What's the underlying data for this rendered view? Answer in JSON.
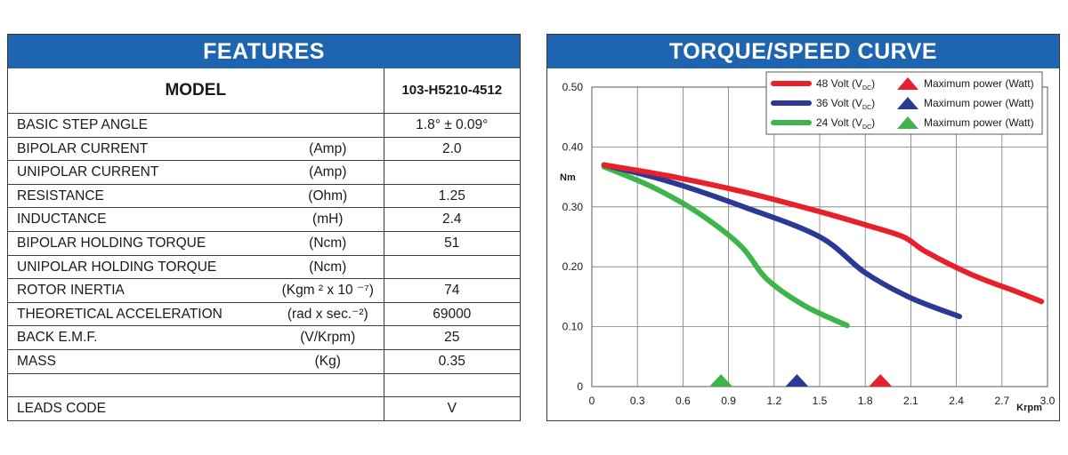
{
  "features": {
    "title": "FEATURES",
    "model_label": "MODEL",
    "model_value": "103-H5210-4512",
    "rows": [
      {
        "name": "BASIC STEP ANGLE",
        "unit": "",
        "value": "1.8° ± 0.09°"
      },
      {
        "name": "BIPOLAR CURRENT",
        "unit": "(Amp)",
        "value": "2.0"
      },
      {
        "name": "UNIPOLAR CURRENT",
        "unit": "(Amp)",
        "value": ""
      },
      {
        "name": "RESISTANCE",
        "unit": "(Ohm)",
        "value": "1.25"
      },
      {
        "name": "INDUCTANCE",
        "unit": "(mH)",
        "value": "2.4"
      },
      {
        "name": "BIPOLAR HOLDING TORQUE",
        "unit": "(Ncm)",
        "value": "51"
      },
      {
        "name": "UNIPOLAR HOLDING TORQUE",
        "unit": "(Ncm)",
        "value": ""
      },
      {
        "name": "ROTOR INERTIA",
        "unit": "(Kgm ² x 10 ⁻⁷)",
        "value": "74"
      },
      {
        "name": "THEORETICAL ACCELERATION",
        "unit": "(rad x sec.⁻²)",
        "value": "69000"
      },
      {
        "name": "BACK E.M.F.",
        "unit": "(V/Krpm)",
        "value": "25"
      },
      {
        "name": "MASS",
        "unit": "(Kg)",
        "value": "0.35"
      },
      {
        "name": "",
        "unit": "",
        "value": ""
      },
      {
        "name": "LEADS CODE",
        "unit": "",
        "value": "V"
      }
    ]
  },
  "colors": {
    "header_blue": "#1e64b0",
    "red": "#e8202a",
    "blue": "#2a3a94",
    "green": "#3db54a"
  },
  "chart_data": {
    "type": "line",
    "title": "TORQUE/SPEED CURVE",
    "xlabel": "Krpm",
    "ylabel": "Nm",
    "xlim": [
      0,
      3.0
    ],
    "ylim": [
      0,
      0.5
    ],
    "x_ticks": [
      "0",
      "0.3",
      "0.6",
      "0.9",
      "1.2",
      "1.5",
      "1.8",
      "2.1",
      "2.4",
      "2.7",
      "3.0"
    ],
    "y_ticks": [
      "0",
      "0.10",
      "0.20",
      "0.30",
      "0.40",
      "0.50"
    ],
    "grid": true,
    "legend_position": "top-right",
    "series": [
      {
        "name": "48 Volt (VDC)",
        "color": "#e8202a",
        "x": [
          0.08,
          0.5,
          1.0,
          1.5,
          1.8,
          2.05,
          2.2,
          2.5,
          2.8,
          2.96
        ],
        "y": [
          0.37,
          0.352,
          0.325,
          0.292,
          0.27,
          0.25,
          0.225,
          0.187,
          0.158,
          0.142
        ],
        "max_power_x": 1.9,
        "max_power_label": "Maximum power (Watt)"
      },
      {
        "name": "36 Volt (VDC)",
        "color": "#2a3a94",
        "x": [
          0.08,
          0.5,
          1.0,
          1.5,
          1.8,
          2.1,
          2.42
        ],
        "y": [
          0.37,
          0.343,
          0.3,
          0.25,
          0.19,
          0.148,
          0.117
        ],
        "max_power_x": 1.35,
        "max_power_label": "Maximum power (Watt)"
      },
      {
        "name": "24 Volt (VDC)",
        "color": "#3db54a",
        "x": [
          0.08,
          0.4,
          0.7,
          0.98,
          1.15,
          1.4,
          1.68
        ],
        "y": [
          0.367,
          0.333,
          0.29,
          0.235,
          0.18,
          0.135,
          0.102
        ],
        "max_power_x": 0.85,
        "max_power_label": "Maximum power (Watt)"
      }
    ]
  }
}
